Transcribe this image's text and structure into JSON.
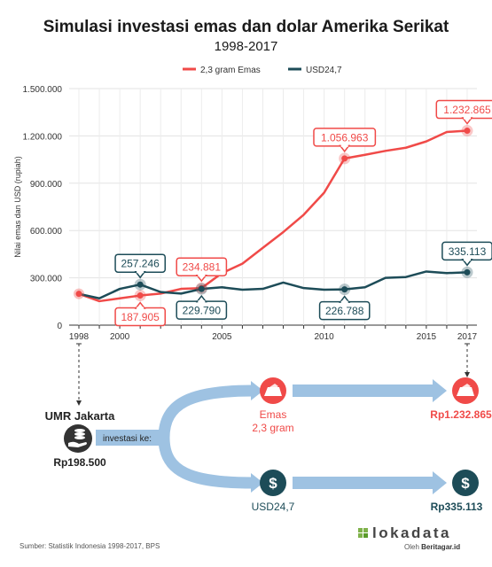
{
  "chart_data": {
    "type": "line",
    "title": "Simulasi investasi emas dan dolar Amerika Serikat",
    "subtitle": "1998-2017",
    "ylabel": "Nilai emas dan USD (rupiah)",
    "ylim": [
      0,
      1500000
    ],
    "y_ticks": [
      "1.500.000",
      "1.200.000",
      "900.000",
      "600.000",
      "300.000",
      "0"
    ],
    "y_tick_values": [
      1500000,
      1200000,
      900000,
      600000,
      300000,
      0
    ],
    "xlim": [
      1998,
      2017
    ],
    "x_ticks": [
      "1998",
      "2000",
      "2005",
      "2010",
      "2015",
      "2017"
    ],
    "x_tick_values": [
      1998,
      2000,
      2005,
      2010,
      2015,
      2017
    ],
    "x": [
      1998,
      1999,
      2000,
      2001,
      2002,
      2003,
      2004,
      2005,
      2006,
      2007,
      2008,
      2009,
      2010,
      2011,
      2012,
      2013,
      2014,
      2015,
      2016,
      2017
    ],
    "series": [
      {
        "name": "2,3 gram Emas",
        "color": "#f04a48",
        "values": [
          198500,
          152000,
          170000,
          187905,
          200000,
          230000,
          234881,
          330000,
          390000,
          490000,
          590000,
          700000,
          840000,
          1056963,
          1080000,
          1105000,
          1125000,
          1165000,
          1225000,
          1232865
        ]
      },
      {
        "name": "USD24,7",
        "color": "#1d4c58",
        "values": [
          198500,
          170000,
          230000,
          257246,
          210000,
          200000,
          229790,
          240000,
          225000,
          230000,
          270000,
          235000,
          225000,
          226788,
          240000,
          300000,
          305000,
          340000,
          330000,
          335113
        ]
      }
    ],
    "annotations": [
      {
        "series": 0,
        "x": 2001,
        "text": "187.905",
        "pos": "below"
      },
      {
        "series": 0,
        "x": 2004,
        "text": "234.881",
        "pos": "above"
      },
      {
        "series": 0,
        "x": 2011,
        "text": "1.056.963",
        "pos": "above"
      },
      {
        "series": 0,
        "x": 2017,
        "text": "1.232.865",
        "pos": "above"
      },
      {
        "series": 1,
        "x": 2001,
        "text": "257.246",
        "pos": "above"
      },
      {
        "series": 1,
        "x": 2004,
        "text": "229.790",
        "pos": "below"
      },
      {
        "series": 1,
        "x": 2011,
        "text": "226.788",
        "pos": "below"
      },
      {
        "series": 1,
        "x": 2017,
        "text": "335.113",
        "pos": "above"
      }
    ],
    "legend_position": "top-center",
    "grid": true
  },
  "flow": {
    "start_label": "UMR Jakarta",
    "start_value": "Rp198.500",
    "invest_label": "investasi ke:",
    "gold_label_1": "Emas",
    "gold_label_2": "2,3 gram",
    "gold_end": "Rp1.232.865",
    "usd_label": "USD24,7",
    "usd_end": "Rp335.113"
  },
  "footer": {
    "source": "Sumber: Statistik Indonesia 1998-2017, BPS",
    "brand": "lokadata",
    "brand_prefix": "Oleh ",
    "brand_by": "Beritagar.id"
  },
  "colors": {
    "gold": "#f04a48",
    "usd": "#1d4c58",
    "arrow": "#9ec2e2"
  }
}
